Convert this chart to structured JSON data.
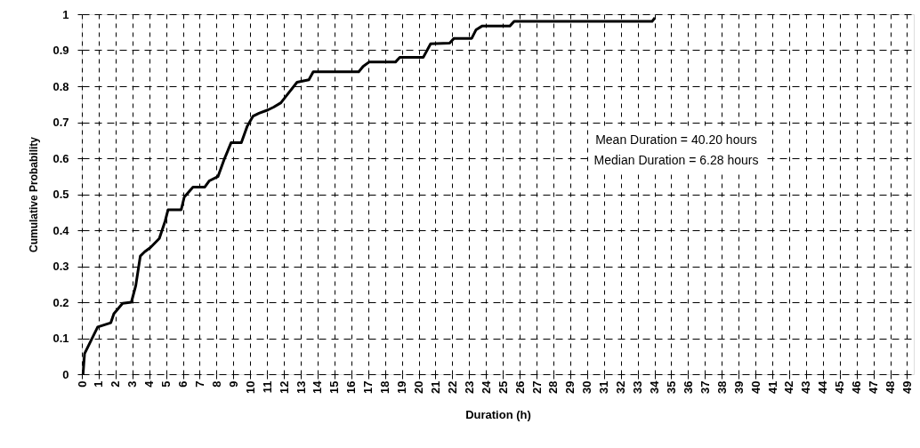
{
  "chart_data": {
    "type": "line",
    "xlabel": "Duration (h)",
    "ylabel": "Cumulative Probability",
    "annotations": [
      "Mean Duration = 40.20 hours",
      "Median Duration = 6.28 hours"
    ],
    "series": [
      {
        "color": "#000000",
        "line_style": "solid",
        "x": [
          0.07,
          0.16,
          0.94,
          1.72,
          1.9,
          2.42,
          2.94,
          3.2,
          3.47,
          3.73,
          4.07,
          4.6,
          4.95,
          5.12,
          5.9,
          6.08,
          6.6,
          7.3,
          7.56,
          8.08,
          8.43,
          8.86,
          9.47,
          9.82,
          10.17,
          10.52,
          11.04,
          11.39,
          11.82,
          12.17,
          12.78,
          13.48,
          13.74,
          16.44,
          16.7,
          17.05,
          18.62,
          18.88,
          20.27,
          20.71,
          21.84,
          22.1,
          23.15,
          23.41,
          23.76,
          25.41,
          25.67,
          33.86,
          34.03
        ],
        "values": [
          0.0,
          0.057,
          0.131,
          0.143,
          0.168,
          0.197,
          0.2,
          0.246,
          0.328,
          0.34,
          0.352,
          0.377,
          0.426,
          0.457,
          0.457,
          0.492,
          0.52,
          0.52,
          0.537,
          0.549,
          0.594,
          0.643,
          0.643,
          0.689,
          0.717,
          0.725,
          0.734,
          0.742,
          0.754,
          0.775,
          0.811,
          0.818,
          0.84,
          0.84,
          0.855,
          0.867,
          0.867,
          0.88,
          0.88,
          0.918,
          0.92,
          0.933,
          0.933,
          0.957,
          0.967,
          0.967,
          0.98,
          0.98,
          0.99
        ]
      }
    ],
    "xlim": [
      0,
      49.4
    ],
    "xticks": [
      0,
      1,
      2,
      3,
      4,
      5,
      6,
      7,
      8,
      9,
      10,
      11,
      12,
      13,
      14,
      15,
      16,
      17,
      18,
      19,
      20,
      21,
      22,
      23,
      24,
      25,
      26,
      27,
      28,
      29,
      30,
      31,
      32,
      33,
      34,
      35,
      36,
      37,
      38,
      39,
      40,
      41,
      42,
      43,
      44,
      45,
      46,
      47,
      48,
      49
    ],
    "ylim": [
      0,
      1
    ],
    "yticks": [
      0,
      0.1,
      0.2,
      0.3,
      0.4,
      0.5,
      0.6,
      0.7,
      0.8,
      0.9,
      1
    ],
    "grid": true
  }
}
